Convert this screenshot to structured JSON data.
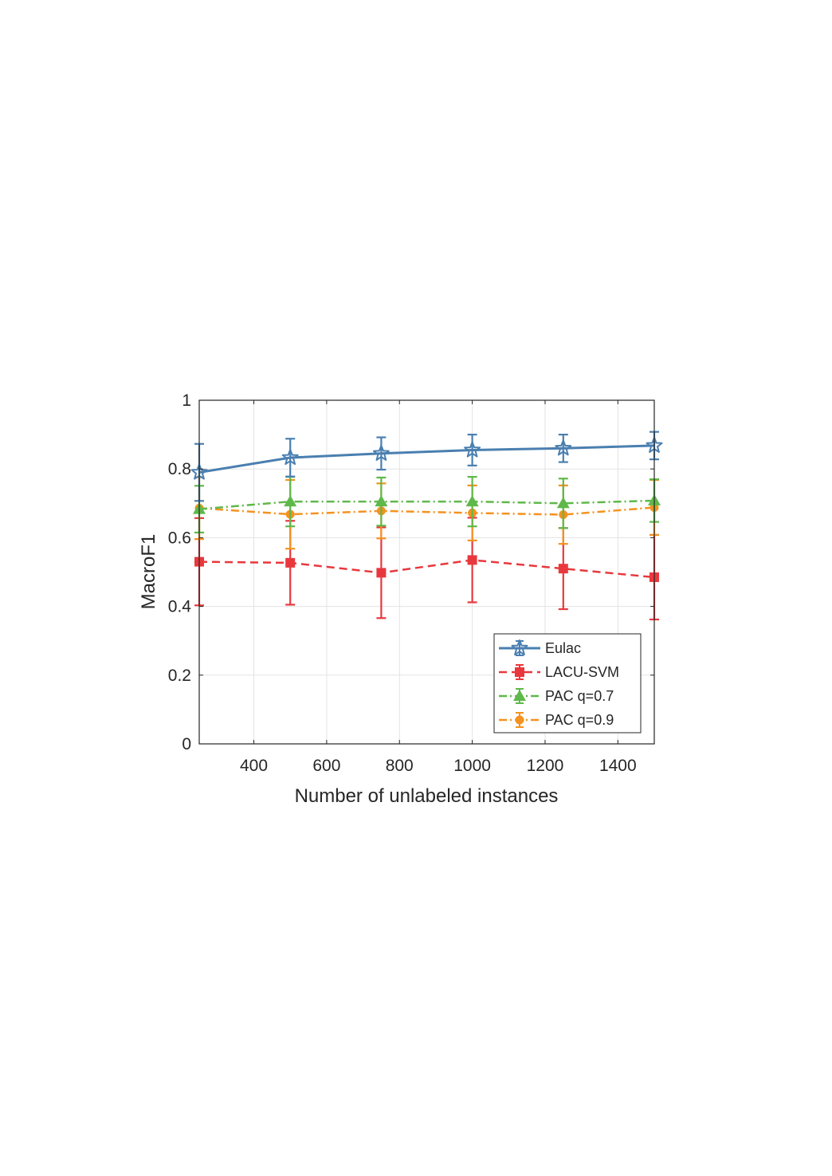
{
  "chart_data": {
    "type": "line",
    "xlabel": "Number of unlabeled instances",
    "ylabel": "MacroF1",
    "xlim": [
      250,
      1500
    ],
    "ylim": [
      0,
      1
    ],
    "x_ticks": [
      400,
      600,
      800,
      1000,
      1200,
      1400
    ],
    "y_ticks": [
      0,
      0.2,
      0.4,
      0.6,
      0.8,
      1
    ],
    "x_tick_labels": [
      "400",
      "600",
      "800",
      "1000",
      "1200",
      "1400"
    ],
    "y_tick_labels": [
      "0",
      "0.2",
      "0.4",
      "0.6",
      "0.8",
      "1"
    ],
    "grid": true,
    "legend_position": "bottom-right",
    "x": [
      250,
      500,
      750,
      1000,
      1250,
      1500
    ],
    "series": [
      {
        "name": "Eulac",
        "color": "#4a7fb0",
        "dash": "solid",
        "marker": "star",
        "values": [
          0.79,
          0.833,
          0.845,
          0.855,
          0.86,
          0.868
        ],
        "errors": [
          0.083,
          0.055,
          0.047,
          0.045,
          0.04,
          0.04
        ]
      },
      {
        "name": "LACU-SVM",
        "color": "#e8383d",
        "dash": "dashed",
        "marker": "square",
        "values": [
          0.53,
          0.527,
          0.498,
          0.535,
          0.51,
          0.485
        ],
        "errors": [
          0.127,
          0.122,
          0.132,
          0.123,
          0.118,
          0.123
        ]
      },
      {
        "name": "PAC q=0.7",
        "color": "#5fb84a",
        "dash": "dashdot",
        "marker": "triangle",
        "values": [
          0.683,
          0.705,
          0.705,
          0.705,
          0.7,
          0.708
        ],
        "errors": [
          0.068,
          0.072,
          0.07,
          0.072,
          0.072,
          0.062
        ]
      },
      {
        "name": "PAC q=0.9",
        "color": "#f5921f",
        "dash": "dashdot",
        "marker": "circle",
        "values": [
          0.686,
          0.668,
          0.678,
          0.672,
          0.667,
          0.688
        ],
        "errors": [
          0.09,
          0.1,
          0.08,
          0.08,
          0.085,
          0.08
        ]
      }
    ]
  }
}
